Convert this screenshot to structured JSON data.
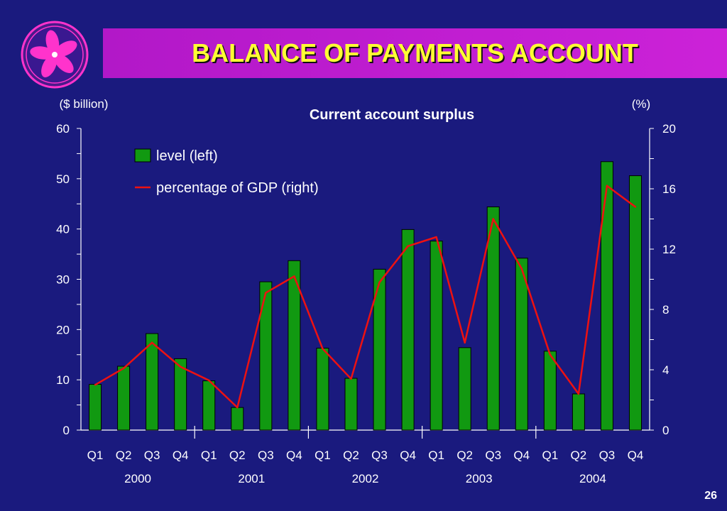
{
  "slide": {
    "title": "BALANCE OF PAYMENTS ACCOUNT",
    "page_number": "26"
  },
  "colors": {
    "background": "#1a1a7e",
    "title_bar": "#c01fd0",
    "title_text": "#ffff33",
    "bar_fill": "#119911",
    "line": "#ee1111",
    "logo_fill": "#ff33cc"
  },
  "logo": {
    "icon": "bauhinia-flower-icon"
  },
  "chart_data": {
    "type": "bar",
    "title": "Current account surplus",
    "left_unit": "($ billion)",
    "right_unit": "(%)",
    "ylim_left": [
      0,
      60
    ],
    "ylim_right": [
      0,
      20
    ],
    "left_ticks": [
      0,
      10,
      20,
      30,
      40,
      50,
      60
    ],
    "right_ticks": [
      0,
      4,
      8,
      12,
      16,
      20
    ],
    "categories": [
      "Q1",
      "Q2",
      "Q3",
      "Q4",
      "Q1",
      "Q2",
      "Q3",
      "Q4",
      "Q1",
      "Q2",
      "Q3",
      "Q4",
      "Q1",
      "Q2",
      "Q3",
      "Q4",
      "Q1",
      "Q2",
      "Q3",
      "Q4"
    ],
    "groups": [
      {
        "label": "2000",
        "count": 4
      },
      {
        "label": "2001",
        "count": 4
      },
      {
        "label": "2002",
        "count": 4
      },
      {
        "label": "2003",
        "count": 4
      },
      {
        "label": "2004",
        "count": 4
      }
    ],
    "legend_position": "top-left",
    "series": [
      {
        "name": "level (left)",
        "kind": "bar",
        "axis": "left",
        "values": [
          9.1,
          12.7,
          19.2,
          14.2,
          9.8,
          4.5,
          29.5,
          33.7,
          16.3,
          10.3,
          32.0,
          39.9,
          37.6,
          16.4,
          44.4,
          34.2,
          15.7,
          7.2,
          53.4,
          50.6
        ]
      },
      {
        "name": "percentage of GDP (right)",
        "kind": "line",
        "axis": "right",
        "values": [
          3.0,
          4.1,
          5.8,
          4.2,
          3.3,
          1.5,
          9.1,
          10.2,
          5.4,
          3.4,
          9.8,
          12.2,
          12.8,
          5.8,
          14.0,
          10.7,
          5.0,
          2.4,
          16.2,
          14.8
        ]
      }
    ]
  }
}
